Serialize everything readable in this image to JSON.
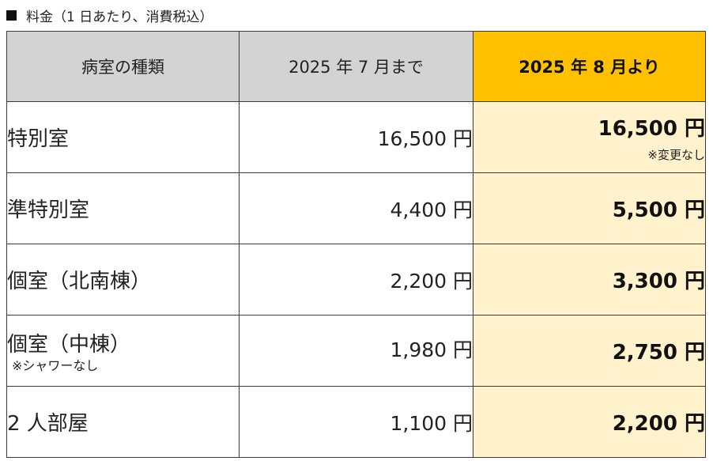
{
  "caption": "料金（1 日あたり、消費税込）",
  "header": {
    "col_type": "病室の種類",
    "col_old": "2025 年 7 月まで",
    "col_new": "2025 年 8 月より"
  },
  "rows": [
    {
      "type": "特別室",
      "type_note": "",
      "old_price": "16,500 円",
      "new_price": "16,500 円",
      "new_note": "※変更なし"
    },
    {
      "type": "準特別室",
      "type_note": "",
      "old_price": "4,400 円",
      "new_price": "5,500 円",
      "new_note": ""
    },
    {
      "type": "個室（北南棟）",
      "type_note": "",
      "old_price": "2,200 円",
      "new_price": "3,300 円",
      "new_note": ""
    },
    {
      "type": "個室（中棟）",
      "type_note": "※シャワーなし",
      "old_price": "1,980 円",
      "new_price": "2,750 円",
      "new_note": ""
    },
    {
      "type": "2 人部屋",
      "type_note": "",
      "old_price": "1,100 円",
      "new_price": "2,200 円",
      "new_note": ""
    }
  ],
  "colors": {
    "header_gray": "#d3d3d3",
    "header_new": "#ffc000",
    "new_column_fill": "#fff2cc",
    "border": "#3a3a3a"
  }
}
